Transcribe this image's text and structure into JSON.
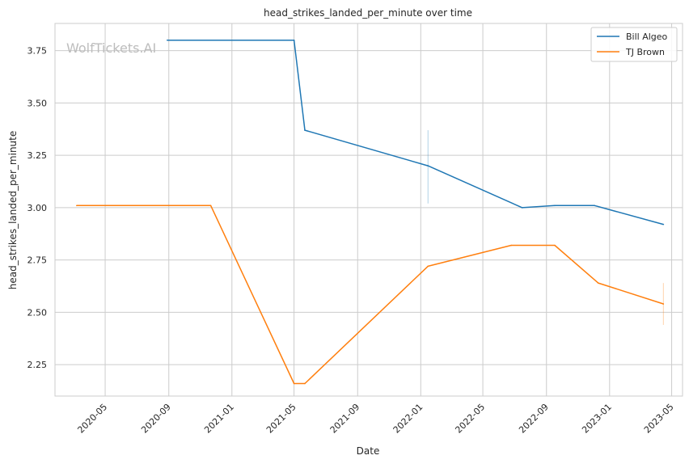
{
  "watermark": "WolfTickets.AI",
  "chart_data": {
    "type": "line",
    "title": "head_strikes_landed_per_minute over time",
    "xlabel": "Date",
    "ylabel": "head_strikes_landed_per_minute",
    "x_range": [
      "2020-01-25",
      "2023-05-22"
    ],
    "ylim": [
      2.1,
      3.88
    ],
    "x_ticks": [
      "2020-05",
      "2020-09",
      "2021-01",
      "2021-05",
      "2021-09",
      "2022-01",
      "2022-05",
      "2022-09",
      "2023-01",
      "2023-05"
    ],
    "y_ticks": [
      "2.25",
      "2.50",
      "2.75",
      "3.00",
      "3.25",
      "3.50",
      "3.75"
    ],
    "grid": true,
    "legend_position": "top-right",
    "series": [
      {
        "name": "Bill Algeo",
        "color": "#1f77b4",
        "points": [
          {
            "x": "2020-08-29",
            "y": 3.8
          },
          {
            "x": "2021-05-01",
            "y": 3.8
          },
          {
            "x": "2021-05-22",
            "y": 3.37
          },
          {
            "x": "2022-01-15",
            "y": 3.2
          },
          {
            "x": "2022-07-16",
            "y": 3.0
          },
          {
            "x": "2022-09-17",
            "y": 3.01
          },
          {
            "x": "2022-12-03",
            "y": 3.01
          },
          {
            "x": "2023-04-15",
            "y": 2.92
          }
        ],
        "error_bar": {
          "x": "2022-01-15",
          "low": 3.02,
          "high": 3.37
        }
      },
      {
        "name": "TJ Brown",
        "color": "#ff7f0e",
        "points": [
          {
            "x": "2020-03-07",
            "y": 3.01
          },
          {
            "x": "2020-11-21",
            "y": 3.01
          },
          {
            "x": "2021-05-01",
            "y": 2.16
          },
          {
            "x": "2021-05-22",
            "y": 2.16
          },
          {
            "x": "2022-01-15",
            "y": 2.72
          },
          {
            "x": "2022-06-25",
            "y": 2.82
          },
          {
            "x": "2022-09-17",
            "y": 2.82
          },
          {
            "x": "2022-12-10",
            "y": 2.64
          },
          {
            "x": "2023-04-15",
            "y": 2.54
          }
        ],
        "error_bar": {
          "x": "2023-04-15",
          "low": 2.44,
          "high": 2.64
        }
      }
    ]
  }
}
